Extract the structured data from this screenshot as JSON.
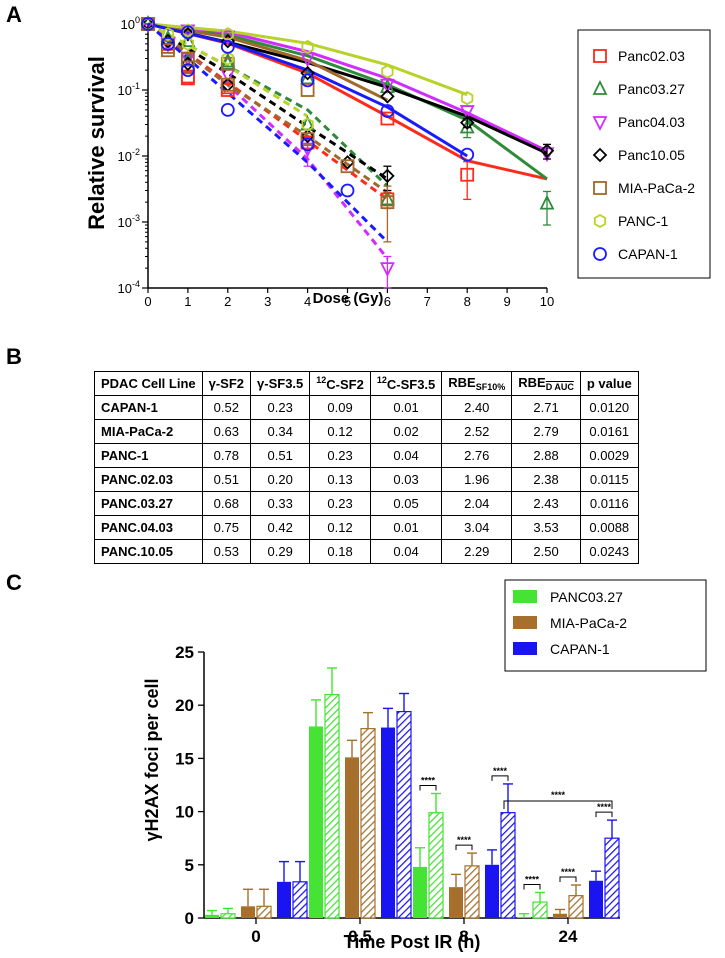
{
  "panels": {
    "a": "A",
    "b": "B",
    "c": "C"
  },
  "chart_data": [
    {
      "type": "scatter",
      "title": "",
      "xlabel": "Dose (Gy)",
      "ylabel": "Relative survival",
      "xlim": [
        0,
        10
      ],
      "ylim": [
        0.0001,
        1
      ],
      "yscale": "log",
      "xticks": [
        0,
        1,
        2,
        3,
        4,
        5,
        6,
        7,
        8,
        9,
        10
      ],
      "yticks": [
        {
          "value": 1,
          "base": "10",
          "exp": "0"
        },
        {
          "value": 0.1,
          "base": "10",
          "exp": "-1"
        },
        {
          "value": 0.01,
          "base": "10",
          "exp": "-2"
        },
        {
          "value": 0.001,
          "base": "10",
          "exp": "-3"
        },
        {
          "value": 0.0001,
          "base": "10",
          "exp": "-4"
        }
      ],
      "legend_position": "right",
      "series": [
        {
          "name": "Panc02.03",
          "color": "#ff2a1a",
          "marker": "square",
          "photon_points": [
            [
              0,
              1
            ],
            [
              1,
              0.15
            ],
            [
              2,
              0.1
            ],
            [
              4,
              0.016
            ],
            [
              6,
              0.037
            ],
            [
              8,
              0.0052
            ]
          ],
          "photon_err": [
            0,
            0,
            0,
            0,
            0,
            0.003
          ],
          "carbon_points": [
            [
              0.5,
              0.5
            ],
            [
              1,
              0.16
            ],
            [
              2,
              0.11
            ],
            [
              4,
              0.016
            ],
            [
              6,
              0.0022
            ]
          ],
          "carbon_err": [
            0,
            0,
            0,
            0,
            0.0006
          ],
          "photon_fit": [
            [
              0,
              1
            ],
            [
              2,
              0.51
            ],
            [
              4,
              0.18
            ],
            [
              6,
              0.04
            ],
            [
              8,
              0.0085
            ],
            [
              10,
              0.0045
            ]
          ],
          "carbon_fit": [
            [
              0,
              1
            ],
            [
              2,
              0.13
            ],
            [
              4,
              0.017
            ],
            [
              6,
              0.0022
            ]
          ]
        },
        {
          "name": "Panc03.27",
          "color": "#2e8b3a",
          "marker": "triangle-up",
          "photon_points": [
            [
              0,
              1
            ],
            [
              1,
              0.55
            ],
            [
              2,
              0.25
            ],
            [
              4,
              0.15
            ],
            [
              6,
              0.11
            ],
            [
              8,
              0.027
            ],
            [
              10,
              0.0019
            ]
          ],
          "photon_err": [
            0,
            0,
            0,
            0,
            0,
            0.008,
            0.001
          ],
          "carbon_points": [
            [
              0.5,
              0.6
            ],
            [
              1,
              0.28
            ],
            [
              2,
              0.27
            ],
            [
              4,
              0.03
            ],
            [
              6,
              0.0022
            ]
          ],
          "carbon_err": [
            0,
            0,
            0,
            0,
            0
          ],
          "photon_fit": [
            [
              0,
              1
            ],
            [
              2,
              0.68
            ],
            [
              4,
              0.33
            ],
            [
              6,
              0.12
            ],
            [
              8,
              0.035
            ],
            [
              10,
              0.0045
            ]
          ],
          "carbon_fit": [
            [
              0,
              1
            ],
            [
              2,
              0.23
            ],
            [
              4,
              0.05
            ],
            [
              6,
              0.0035
            ]
          ]
        },
        {
          "name": "Panc04.03",
          "color": "#d22bff",
          "marker": "triangle-down",
          "photon_points": [
            [
              0,
              1
            ],
            [
              1,
              0.8
            ],
            [
              2,
              0.65
            ],
            [
              4,
              0.3
            ],
            [
              6,
              0.12
            ],
            [
              8,
              0.048
            ],
            [
              10,
              0.011
            ]
          ],
          "photon_err": [
            0,
            0,
            0,
            0,
            0,
            0,
            0
          ],
          "carbon_points": [
            [
              0.5,
              0.5
            ],
            [
              1,
              0.3
            ],
            [
              2,
              0.17
            ],
            [
              4,
              0.013
            ],
            [
              6,
              0.0002
            ]
          ],
          "carbon_err": [
            0,
            0,
            0,
            0.006,
            0.0001
          ],
          "photon_fit": [
            [
              0,
              1
            ],
            [
              2,
              0.75
            ],
            [
              4,
              0.38
            ],
            [
              6,
              0.15
            ],
            [
              8,
              0.045
            ],
            [
              10,
              0.012
            ]
          ],
          "carbon_fit": [
            [
              0,
              1
            ],
            [
              2,
              0.12
            ],
            [
              4,
              0.009
            ],
            [
              6,
              0.00028
            ]
          ]
        },
        {
          "name": "Panc10.05",
          "color": "#000000",
          "marker": "diamond",
          "photon_points": [
            [
              0,
              1
            ],
            [
              1,
              0.7
            ],
            [
              2,
              0.55
            ],
            [
              4,
              0.18
            ],
            [
              6,
              0.08
            ],
            [
              8,
              0.032
            ],
            [
              10,
              0.012
            ]
          ],
          "photon_err": [
            0,
            0,
            0,
            0,
            0,
            0.005,
            0.003
          ],
          "carbon_points": [
            [
              0.5,
              0.55
            ],
            [
              1,
              0.25
            ],
            [
              2,
              0.12
            ],
            [
              4,
              0.02
            ],
            [
              5,
              0.008
            ],
            [
              6,
              0.005
            ]
          ],
          "carbon_err": [
            0,
            0,
            0,
            0,
            0,
            0.002
          ],
          "photon_fit": [
            [
              0,
              1
            ],
            [
              2,
              0.53
            ],
            [
              4,
              0.26
            ],
            [
              6,
              0.11
            ],
            [
              8,
              0.04
            ],
            [
              10,
              0.011
            ]
          ],
          "carbon_fit": [
            [
              0,
              1
            ],
            [
              2,
              0.18
            ],
            [
              4,
              0.028
            ],
            [
              6,
              0.0045
            ]
          ]
        },
        {
          "name": "MIA-PaCa-2",
          "color": "#a0682a",
          "marker": "square",
          "photon_points": [
            [
              0,
              1
            ],
            [
              0.5,
              0.4
            ],
            [
              1,
              0.3
            ],
            [
              2,
              0.25
            ],
            [
              4,
              0.1
            ],
            [
              6,
              0.002
            ]
          ],
          "photon_err": [
            0,
            0,
            0,
            0,
            0,
            0.0015
          ],
          "carbon_points": [
            [
              0.5,
              0.45
            ],
            [
              1,
              0.22
            ],
            [
              2,
              0.12
            ],
            [
              4,
              0.018
            ],
            [
              5,
              0.007
            ]
          ],
          "carbon_err": [
            0,
            0,
            0,
            0,
            0
          ],
          "photon_fit": [
            [
              0,
              1
            ],
            [
              2,
              0.63
            ],
            [
              4,
              0.28
            ],
            [
              6,
              0.07
            ]
          ],
          "carbon_fit": [
            [
              0,
              1
            ],
            [
              2,
              0.12
            ],
            [
              4,
              0.02
            ],
            [
              6,
              0.0028
            ]
          ]
        },
        {
          "name": "PANC-1",
          "color": "#b8d22a",
          "marker": "hexagon",
          "photon_points": [
            [
              0,
              1
            ],
            [
              1,
              0.8
            ],
            [
              2,
              0.7
            ],
            [
              4,
              0.45
            ],
            [
              6,
              0.19
            ],
            [
              8,
              0.075
            ]
          ],
          "photon_err": [
            0,
            0,
            0,
            0,
            0,
            0
          ],
          "carbon_points": [
            [
              0.5,
              0.7
            ],
            [
              1,
              0.5
            ],
            [
              2,
              0.3
            ],
            [
              4,
              0.03
            ]
          ],
          "carbon_err": [
            0,
            0,
            0,
            0
          ],
          "photon_fit": [
            [
              0,
              1
            ],
            [
              2,
              0.78
            ],
            [
              4,
              0.51
            ],
            [
              6,
              0.24
            ],
            [
              8,
              0.085
            ]
          ],
          "carbon_fit": [
            [
              0,
              1
            ],
            [
              2,
              0.23
            ],
            [
              4,
              0.04
            ]
          ]
        },
        {
          "name": "CAPAN-1",
          "color": "#1a1aff",
          "marker": "circle",
          "photon_points": [
            [
              0,
              1
            ],
            [
              1,
              0.75
            ],
            [
              2,
              0.45
            ],
            [
              4,
              0.14
            ],
            [
              6,
              0.048
            ],
            [
              8,
              0.0105
            ]
          ],
          "photon_err": [
            0,
            0,
            0,
            0,
            0,
            0
          ],
          "carbon_points": [
            [
              0.5,
              0.5
            ],
            [
              1,
              0.2
            ],
            [
              2,
              0.05
            ],
            [
              4,
              0.015
            ],
            [
              5,
              0.003
            ]
          ],
          "carbon_err": [
            0,
            0,
            0,
            0,
            0
          ],
          "photon_fit": [
            [
              0,
              1
            ],
            [
              2,
              0.52
            ],
            [
              4,
              0.2
            ],
            [
              6,
              0.055
            ],
            [
              8,
              0.01
            ]
          ],
          "carbon_fit": [
            [
              0,
              1
            ],
            [
              2,
              0.09
            ],
            [
              4,
              0.008
            ],
            [
              6,
              0.0005
            ]
          ]
        }
      ]
    },
    {
      "type": "table",
      "title": "",
      "headers": {
        "cell_line": "PDAC Cell Line",
        "g_sf2": "γ-SF2",
        "g_sf35": "γ-SF3.5",
        "c_sup": "12",
        "c_sf2": "C-SF2",
        "c_sf35": "C-SF3.5",
        "rbe": "RBE",
        "rbe_sub1": "SF10%",
        "rbe_sub2": "D AUC",
        "p": "p value"
      },
      "rows": [
        [
          "CAPAN-1",
          "0.52",
          "0.23",
          "0.09",
          "0.01",
          "2.40",
          "2.71",
          "0.0120"
        ],
        [
          "MIA-PaCa-2",
          "0.63",
          "0.34",
          "0.12",
          "0.02",
          "2.52",
          "2.79",
          "0.0161"
        ],
        [
          "PANC-1",
          "0.78",
          "0.51",
          "0.23",
          "0.04",
          "2.76",
          "2.88",
          "0.0029"
        ],
        [
          "PANC.02.03",
          "0.51",
          "0.20",
          "0.13",
          "0.03",
          "1.96",
          "2.38",
          "0.0115"
        ],
        [
          "PANC.03.27",
          "0.68",
          "0.33",
          "0.23",
          "0.05",
          "2.04",
          "2.43",
          "0.0116"
        ],
        [
          "PANC.04.03",
          "0.75",
          "0.42",
          "0.12",
          "0.01",
          "3.04",
          "3.53",
          "0.0088"
        ],
        [
          "PANC.10.05",
          "0.53",
          "0.29",
          "0.18",
          "0.04",
          "2.29",
          "2.50",
          "0.0243"
        ]
      ]
    },
    {
      "type": "bar",
      "title": "",
      "xlabel": "Time Post IR (h)",
      "ylabel": "γH2AX foci per cell",
      "ylim": [
        0,
        25
      ],
      "yticks": [
        0,
        5,
        10,
        15,
        20,
        25
      ],
      "categories": [
        "0",
        "0.5",
        "8",
        "24"
      ],
      "legend_position": "top-right",
      "significance_label": "****",
      "series": [
        {
          "name": "PANC03.27",
          "color": "#44e334",
          "photon": [
            0.3,
            18.0,
            4.8,
            0.1
          ],
          "photon_err": [
            0.4,
            2.5,
            1.8,
            0.3
          ],
          "carbon": [
            0.4,
            21.0,
            9.9,
            1.5
          ],
          "carbon_err": [
            0.5,
            2.5,
            1.8,
            0.9
          ]
        },
        {
          "name": "MIA-PaCa-2",
          "color": "#a66f2c",
          "photon": [
            1.1,
            15.1,
            2.9,
            0.4
          ],
          "photon_err": [
            1.6,
            1.6,
            1.2,
            0.4
          ],
          "carbon": [
            1.1,
            17.8,
            4.9,
            2.1
          ],
          "carbon_err": [
            1.6,
            1.5,
            1.2,
            1.0
          ]
        },
        {
          "name": "CAPAN-1",
          "color": "#1a14f0",
          "photon": [
            3.4,
            17.9,
            5.0,
            3.5
          ],
          "photon_err": [
            1.9,
            1.8,
            1.4,
            0.9
          ],
          "carbon": [
            3.4,
            19.4,
            9.9,
            7.5
          ],
          "carbon_err": [
            1.9,
            1.7,
            2.7,
            1.7
          ]
        }
      ],
      "significance": [
        {
          "category": 2,
          "series": 0
        },
        {
          "category": 2,
          "series": 1
        },
        {
          "category": 2,
          "series": 2
        },
        {
          "category": 3,
          "series": 0
        },
        {
          "category": 3,
          "series": 1
        },
        {
          "category": 3,
          "series": 2
        },
        {
          "category": 3,
          "bracket": "photon-capan-to-carbon-capan-24"
        }
      ]
    }
  ]
}
